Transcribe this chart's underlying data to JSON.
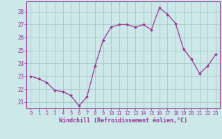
{
  "hours": [
    0,
    1,
    2,
    3,
    4,
    5,
    6,
    7,
    8,
    9,
    10,
    11,
    12,
    13,
    14,
    15,
    16,
    17,
    18,
    19,
    20,
    21,
    22,
    23
  ],
  "values": [
    23.0,
    22.8,
    22.5,
    21.9,
    21.8,
    21.5,
    20.7,
    21.4,
    23.8,
    25.8,
    26.8,
    27.0,
    27.0,
    26.8,
    27.0,
    26.6,
    28.3,
    27.8,
    27.1,
    25.1,
    24.3,
    23.2,
    23.8,
    24.7
  ],
  "line_color": "#993399",
  "marker": "D",
  "marker_size": 2.0,
  "bg_color": "#cce8e8",
  "grid_color": "#aacccc",
  "xlabel": "Windchill (Refroidissement éolien,°C)",
  "ylim": [
    20.5,
    28.8
  ],
  "yticks": [
    21,
    22,
    23,
    24,
    25,
    26,
    27,
    28
  ],
  "axis_color": "#993399",
  "tick_color": "#993399",
  "xlabel_fontsize": 6.0,
  "ytick_fontsize": 5.5,
  "xtick_fontsize": 5.0
}
